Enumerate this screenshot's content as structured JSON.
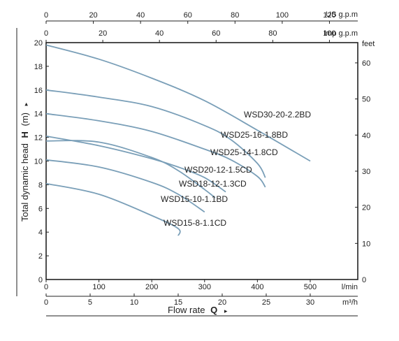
{
  "chart_data": {
    "type": "line",
    "title": "",
    "x_axes": {
      "us_gpm": {
        "label": "US g.p.m",
        "ticks": [
          "0",
          "20",
          "40",
          "60",
          "80",
          "100",
          "120"
        ],
        "range": [
          0,
          132
        ]
      },
      "imp_gpm": {
        "label": "Imp g.p.m",
        "ticks": [
          "0",
          "20",
          "40",
          "60",
          "80",
          "100"
        ],
        "range": [
          0,
          110
        ]
      },
      "lpm": {
        "label": "l/min",
        "ticks": [
          "0",
          "100",
          "200",
          "300",
          "400",
          "500"
        ],
        "range": [
          0,
          590
        ]
      },
      "m3h": {
        "label": "m³/h",
        "ticks": [
          "0",
          "5",
          "10",
          "15",
          "20",
          "25",
          "30"
        ]
      }
    },
    "xlabel": {
      "text": "Flow rate",
      "bold": "Q",
      "arrow": "▸"
    },
    "y_axes": {
      "left": {
        "ticks": [
          "0",
          "2",
          "4",
          "6",
          "8",
          "10",
          "12",
          "14",
          "16",
          "18",
          "20"
        ],
        "range": [
          0,
          20
        ]
      },
      "right": {
        "label": "feet",
        "ticks": [
          "0",
          "10",
          "20",
          "30",
          "40",
          "50",
          "60"
        ],
        "range": [
          0,
          65.6
        ]
      }
    },
    "ylabel": {
      "text": "Total dynamic head",
      "bold": "H",
      "unit": "(m)",
      "arrow": "▸"
    },
    "series": [
      {
        "name": "WSD30-20-2.2BD",
        "x": [
          0,
          100,
          200,
          300,
          400,
          500
        ],
        "y": [
          19.8,
          18.6,
          17.0,
          15.1,
          12.6,
          10.0
        ]
      },
      {
        "name": "WSD25-16-1.8BD",
        "x": [
          0,
          100,
          200,
          300,
          350,
          400,
          415
        ],
        "y": [
          16.0,
          15.4,
          14.6,
          13.0,
          11.8,
          9.8,
          8.6
        ]
      },
      {
        "name": "WSD25-14-1.8CD",
        "x": [
          0,
          100,
          200,
          300,
          350,
          400,
          415
        ],
        "y": [
          14.0,
          13.4,
          12.5,
          11.0,
          10.1,
          8.7,
          7.8
        ]
      },
      {
        "name": "WSD20-12-1.5CD",
        "x": [
          0,
          100,
          200,
          250,
          300,
          340
        ],
        "y": [
          12.1,
          11.3,
          10.2,
          9.5,
          8.6,
          7.4
        ]
      },
      {
        "name": "WSD18-12-1.3CD",
        "x": [
          0,
          100,
          200,
          250,
          300,
          320
        ],
        "y": [
          11.7,
          11.6,
          10.3,
          9.2,
          7.6,
          6.9
        ]
      },
      {
        "name": "WSD15-10-1.1BD",
        "x": [
          0,
          100,
          200,
          250,
          300
        ],
        "y": [
          10.1,
          9.5,
          8.2,
          7.2,
          5.7
        ]
      },
      {
        "name": "WSD15-8-1.1CD",
        "x": [
          0,
          100,
          200,
          250
        ],
        "y": [
          8.1,
          7.2,
          5.4,
          4.3
        ]
      }
    ],
    "extra_point": {
      "series": "WSD15-8-1.1CD",
      "x": 250,
      "y": 3.7
    },
    "grid": false,
    "legend": "none; series labels placed beside curve ends"
  },
  "colors": {
    "curve": "#7a9fb8",
    "axis": "#222222",
    "label": "#222222"
  }
}
